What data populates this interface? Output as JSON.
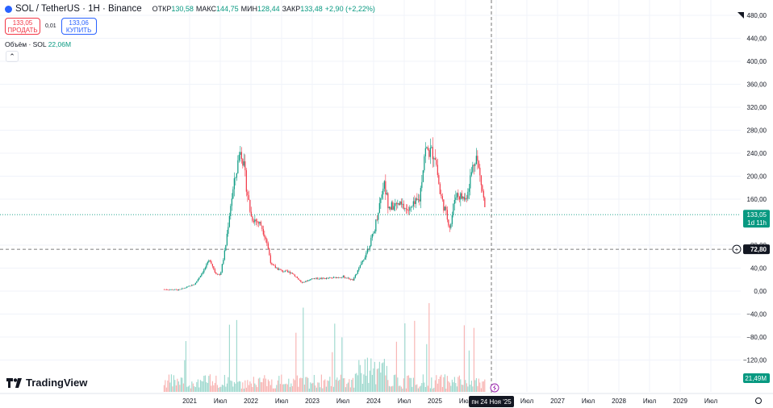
{
  "header": {
    "symbol": "SOL / TetherUS · 1H · Binance",
    "open_label": "ОТКР",
    "open_value": "130,58",
    "high_label": "МАКС",
    "high_value": "144,75",
    "low_label": "МИН",
    "low_value": "128,44",
    "close_label": "ЗАКР",
    "close_value": "133,48",
    "change": "+2,90 (+2,22%)"
  },
  "trade": {
    "sell_price": "133,05",
    "sell_label": "ПРОДАТЬ",
    "spread": "0,01",
    "buy_price": "133,06",
    "buy_label": "КУПИТЬ"
  },
  "volume_legend": {
    "label": "Объём · SOL",
    "value": "22,06M"
  },
  "collapse_glyph": "⌃",
  "logo_text": "TradingView",
  "colors": {
    "up": "#089981",
    "down": "#f23645",
    "up_volume": "#8fd3c6",
    "down_volume": "#f7a9a7",
    "accent": "#2962ff"
  },
  "chart_data": {
    "type": "candlestick",
    "title": "SOL / TetherUS",
    "y_axis_labels": [
      "480,00",
      "440,00",
      "400,00",
      "360,00",
      "320,00",
      "280,00",
      "240,00",
      "200,00",
      "160,00",
      "80,00",
      "40,00",
      "0,00",
      "−40,00",
      "−80,00",
      "−120,00"
    ],
    "x_axis_labels": [
      "2021",
      "Июл",
      "2022",
      "Июл",
      "2023",
      "Июл",
      "2024",
      "Июл",
      "2025",
      "Июл",
      "2026",
      "Июл",
      "2027",
      "Июл",
      "2028",
      "Июл",
      "2029",
      "Июл"
    ],
    "ylim": [
      -150,
      500
    ],
    "price_markers": {
      "last_price": "133,05",
      "countdown": "1d 11h",
      "crosshair_price": "72,80",
      "volume_last": "21,49M"
    },
    "crosshair_date": "пн 24 Ноя '25",
    "price_path": [
      [
        "2020-08",
        3
      ],
      [
        "2020-11",
        2
      ],
      [
        "2021-02",
        12
      ],
      [
        "2021-04",
        40
      ],
      [
        "2021-05",
        55
      ],
      [
        "2021-06",
        32
      ],
      [
        "2021-07",
        28
      ],
      [
        "2021-08",
        75
      ],
      [
        "2021-09",
        150
      ],
      [
        "2021-10",
        200
      ],
      [
        "2021-11",
        255
      ],
      [
        "2021-12",
        190
      ],
      [
        "2022-01",
        130
      ],
      [
        "2022-03",
        115
      ],
      [
        "2022-04",
        90
      ],
      [
        "2022-05",
        45
      ],
      [
        "2022-07",
        35
      ],
      [
        "2022-09",
        32
      ],
      [
        "2022-11",
        14
      ],
      [
        "2023-01",
        22
      ],
      [
        "2023-04",
        22
      ],
      [
        "2023-07",
        25
      ],
      [
        "2023-09",
        19
      ],
      [
        "2023-11",
        55
      ],
      [
        "2024-01",
        100
      ],
      [
        "2024-03",
        190
      ],
      [
        "2024-04",
        145
      ],
      [
        "2024-06",
        150
      ],
      [
        "2024-08",
        140
      ],
      [
        "2024-10",
        160
      ],
      [
        "2024-11",
        245
      ],
      [
        "2025-01",
        240
      ],
      [
        "2025-02",
        170
      ],
      [
        "2025-04",
        110
      ],
      [
        "2025-05",
        170
      ],
      [
        "2025-07",
        160
      ],
      [
        "2025-09",
        240
      ],
      [
        "2025-10",
        190
      ],
      [
        "2025-11",
        133
      ]
    ]
  }
}
